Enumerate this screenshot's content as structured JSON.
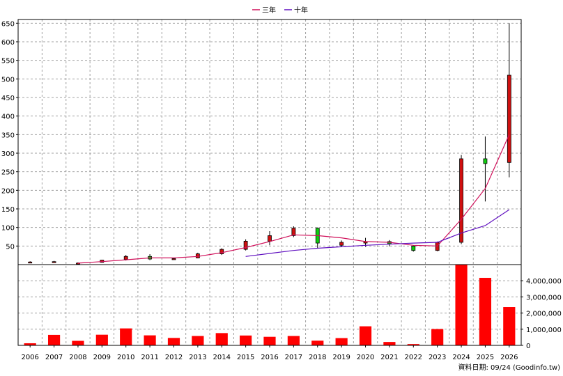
{
  "legend": {
    "items": [
      {
        "label": "三年",
        "color": "#d0105a"
      },
      {
        "label": "十年",
        "color": "#6010c0"
      }
    ]
  },
  "footer": {
    "source_label": "資料日期: 09/24  (Goodinfo.tw)"
  },
  "colors": {
    "up_candle": "#d01010",
    "down_candle": "#10d010",
    "volume_bar": "#ff0000",
    "three_year_line": "#d0105a",
    "ten_year_line": "#6010c0",
    "grid": "#a0a0a0"
  },
  "chart_data": [
    {
      "type": "candlestick",
      "title": "",
      "xlabel": "",
      "ylabel": "",
      "categories": [
        "2006",
        "2007",
        "2008",
        "2009",
        "2010",
        "2011",
        "2012",
        "2013",
        "2014",
        "2015",
        "2016",
        "2017",
        "2018",
        "2019",
        "2020",
        "2021",
        "2022",
        "2023",
        "2024",
        "2025",
        "2026"
      ],
      "ylim": [
        0,
        660
      ],
      "yticks": [
        50,
        100,
        150,
        200,
        250,
        300,
        350,
        400,
        450,
        500,
        550,
        600,
        650
      ],
      "grid": true,
      "ohlc": [
        {
          "o": 7,
          "h": 9,
          "l": 5,
          "c": 7
        },
        {
          "o": 8,
          "h": 10,
          "l": 6,
          "c": 8
        },
        {
          "o": 4,
          "h": 6,
          "l": 3,
          "c": 4
        },
        {
          "o": 6,
          "h": 13,
          "l": 5,
          "c": 12
        },
        {
          "o": 14,
          "h": 26,
          "l": 11,
          "c": 22
        },
        {
          "o": 22,
          "h": 28,
          "l": 12,
          "c": 15
        },
        {
          "o": 15,
          "h": 17,
          "l": 13,
          "c": 16
        },
        {
          "o": 18,
          "h": 32,
          "l": 17,
          "c": 29
        },
        {
          "o": 29,
          "h": 44,
          "l": 26,
          "c": 41
        },
        {
          "o": 41,
          "h": 68,
          "l": 38,
          "c": 63
        },
        {
          "o": 63,
          "h": 90,
          "l": 52,
          "c": 78
        },
        {
          "o": 78,
          "h": 103,
          "l": 74,
          "c": 98
        },
        {
          "o": 98,
          "h": 100,
          "l": 45,
          "c": 58
        },
        {
          "o": 52,
          "h": 65,
          "l": 47,
          "c": 60
        },
        {
          "o": 58,
          "h": 72,
          "l": 48,
          "c": 62
        },
        {
          "o": 62,
          "h": 66,
          "l": 49,
          "c": 56
        },
        {
          "o": 50,
          "h": 52,
          "l": 35,
          "c": 38
        },
        {
          "o": 38,
          "h": 62,
          "l": 36,
          "c": 60
        },
        {
          "o": 60,
          "h": 295,
          "l": 55,
          "c": 285
        },
        {
          "o": 285,
          "h": 345,
          "l": 170,
          "c": 272
        },
        {
          "o": 275,
          "h": 650,
          "l": 235,
          "c": 510
        }
      ],
      "series": [
        {
          "name": "三年",
          "values": [
            null,
            null,
            4,
            8,
            13,
            18,
            18,
            22,
            32,
            46,
            62,
            80,
            78,
            72,
            62,
            60,
            52,
            50,
            122,
            205,
            350
          ]
        },
        {
          "name": "十年",
          "values": [
            null,
            null,
            null,
            null,
            null,
            null,
            null,
            null,
            null,
            22,
            30,
            38,
            44,
            48,
            52,
            55,
            58,
            60,
            85,
            105,
            148
          ]
        }
      ]
    },
    {
      "type": "bar",
      "title": "",
      "xlabel": "",
      "ylabel": "",
      "categories": [
        "2006",
        "2007",
        "2008",
        "2009",
        "2010",
        "2011",
        "2012",
        "2013",
        "2014",
        "2015",
        "2016",
        "2017",
        "2018",
        "2019",
        "2020",
        "2021",
        "2022",
        "2023",
        "2024",
        "2025",
        "2026"
      ],
      "ylim": [
        0,
        5000000
      ],
      "yticks": [
        0,
        1000000,
        2000000,
        3000000,
        4000000
      ],
      "ytick_labels": [
        "0",
        "1,000,000",
        "2,000,000",
        "3,000,000",
        "4,000,000"
      ],
      "grid": true,
      "values": [
        130000,
        650000,
        280000,
        660000,
        1050000,
        620000,
        460000,
        580000,
        760000,
        610000,
        530000,
        580000,
        290000,
        450000,
        1180000,
        210000,
        80000,
        1010000,
        4980000,
        4180000,
        2370000
      ]
    }
  ]
}
